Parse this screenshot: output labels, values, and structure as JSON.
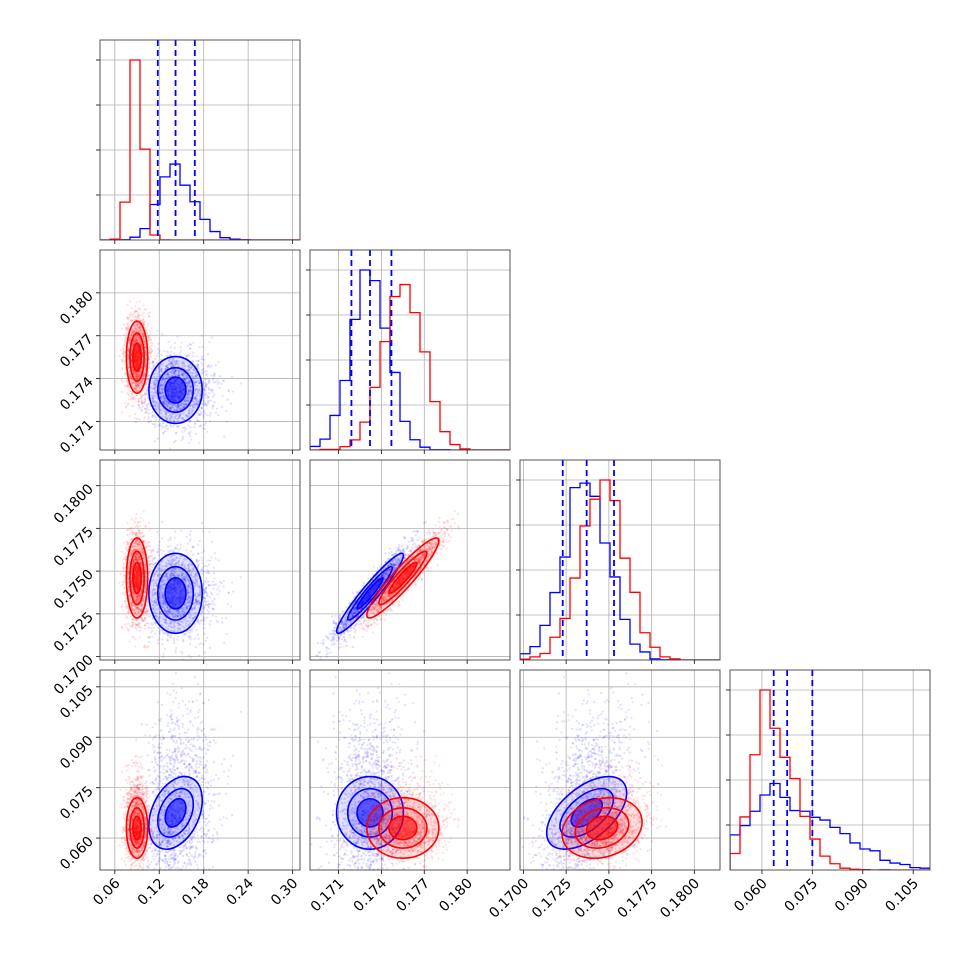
{
  "chart_data": {
    "type": "corner",
    "params": 4,
    "colors": {
      "blue": "#0000ff",
      "red": "#ff0000"
    },
    "grid": true,
    "legend": "none",
    "series": [
      {
        "color": "#0000ff",
        "means": [
          0.142,
          0.1732,
          0.1737,
          0.0675
        ],
        "sds": [
          0.02,
          0.0013,
          0.0013,
          0.006
        ],
        "quantiles": [
          [
            0.118,
            0.142,
            0.168
          ],
          [
            0.1719,
            0.1732,
            0.1747
          ],
          [
            0.1723,
            0.1737,
            0.1753
          ],
          [
            0.0635,
            0.0675,
            0.075
          ]
        ]
      },
      {
        "color": "#ff0000",
        "means": [
          0.09,
          0.1755,
          0.1746,
          0.063
        ],
        "sds": [
          0.008,
          0.0014,
          0.0013,
          0.005
        ]
      }
    ],
    "axes": [
      {
        "range": [
          0.04,
          0.31
        ],
        "ticks": [
          0.06,
          0.12,
          0.18,
          0.24,
          0.3
        ],
        "labels": [
          "0.06",
          "0.12",
          "0.18",
          "0.24",
          "0.30"
        ]
      },
      {
        "range": [
          0.169,
          0.183
        ],
        "ticks": [
          0.171,
          0.174,
          0.177,
          0.18
        ],
        "labels": [
          "0.171",
          "0.174",
          "0.177",
          "0.180"
        ]
      },
      {
        "range": [
          0.1698,
          0.1815
        ],
        "ticks": [
          0.17,
          0.1725,
          0.175,
          0.1775,
          0.18
        ],
        "labels": [
          "0.1700",
          "0.1725",
          "0.1750",
          "0.1775",
          "0.1800"
        ]
      },
      {
        "range": [
          0.0505,
          0.11
        ],
        "ticks": [
          0.06,
          0.075,
          0.09,
          0.105
        ],
        "labels": [
          "0.060",
          "0.075",
          "0.090",
          "0.105"
        ]
      }
    ]
  }
}
